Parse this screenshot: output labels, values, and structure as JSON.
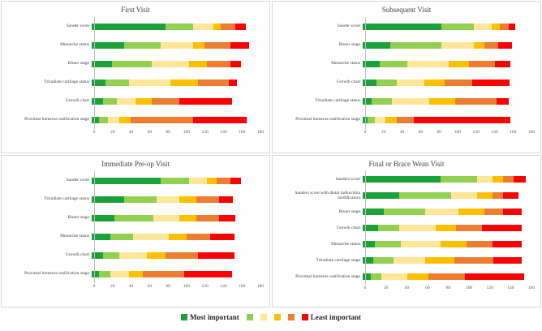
{
  "legend": {
    "most_label": "Most important",
    "least_label": "Least important",
    "colors": [
      "#1ba139",
      "#92d050",
      "#ffe699",
      "#ffc000",
      "#ed7d31",
      "#fe0000"
    ]
  },
  "chart_data": [
    {
      "type": "bar",
      "stacked": true,
      "orientation": "horizontal",
      "title": "First Visit",
      "xlabel": "",
      "ylabel": "",
      "xmax": 180,
      "ticks": [
        0,
        20,
        40,
        60,
        80,
        100,
        120,
        140,
        160,
        180
      ],
      "categories": [
        "Sander score",
        "Menarche status",
        "Risser stage",
        "Triradiate cartilage status",
        "Growth chart",
        "Proximal humerus ossification stage"
      ],
      "values": [
        [
          80,
          30,
          22,
          8,
          15,
          12
        ],
        [
          35,
          40,
          35,
          12,
          28,
          20
        ],
        [
          22,
          43,
          40,
          20,
          25,
          12
        ],
        [
          15,
          25,
          45,
          30,
          33,
          9
        ],
        [
          12,
          15,
          20,
          18,
          30,
          57
        ],
        [
          8,
          10,
          12,
          12,
          68,
          58
        ]
      ]
    },
    {
      "type": "bar",
      "stacked": true,
      "orientation": "horizontal",
      "title": "Subsequent Visit",
      "xlabel": "",
      "ylabel": "",
      "xmax": 180,
      "ticks": [
        0,
        20,
        40,
        60,
        80,
        100,
        120,
        140,
        160,
        180
      ],
      "categories": [
        "Sander score",
        "Risser stage",
        "Menarche status",
        "Growth chart",
        "Triradiate cartilage status",
        "Proximal humerus ossification stage"
      ],
      "values": [
        [
          85,
          35,
          20,
          8,
          10,
          7
        ],
        [
          30,
          55,
          35,
          12,
          15,
          15
        ],
        [
          18,
          30,
          45,
          22,
          28,
          17
        ],
        [
          15,
          22,
          30,
          22,
          30,
          40
        ],
        [
          10,
          22,
          40,
          28,
          45,
          13
        ],
        [
          5,
          8,
          12,
          12,
          18,
          105
        ]
      ]
    },
    {
      "type": "bar",
      "stacked": true,
      "orientation": "horizontal",
      "title": "Immediate Pre-op Visit",
      "xlabel": "",
      "ylabel": "",
      "xmax": 180,
      "ticks": [
        0,
        20,
        40,
        60,
        80,
        100,
        120,
        140,
        160,
        180
      ],
      "categories": [
        "Sander score",
        "Triradiate cartilage status",
        "Risser stage",
        "Menarche status",
        "Growth chart",
        "Proximal humerus ossification stage"
      ],
      "values": [
        [
          75,
          30,
          20,
          10,
          15,
          12
        ],
        [
          35,
          35,
          25,
          18,
          25,
          15
        ],
        [
          25,
          42,
          28,
          18,
          25,
          17
        ],
        [
          20,
          25,
          38,
          20,
          25,
          27
        ],
        [
          12,
          18,
          30,
          20,
          35,
          40
        ],
        [
          8,
          12,
          20,
          15,
          45,
          52
        ]
      ]
    },
    {
      "type": "bar",
      "stacked": true,
      "orientation": "horizontal",
      "title": "Final or Brace Wean Visit",
      "xlabel": "",
      "ylabel": "",
      "xmax": 160,
      "ticks": [
        0,
        20,
        40,
        60,
        80,
        100,
        120,
        140,
        160
      ],
      "categories": [
        "Sanders score",
        "Sanders score with distal radius/ulna modification",
        "Risser stage",
        "Growth chart",
        "Menarche status",
        "Triradiate cartilage stage",
        "Proximal humerus ossification stage"
      ],
      "values": [
        [
          75,
          35,
          15,
          10,
          10,
          12
        ],
        [
          35,
          50,
          25,
          15,
          10,
          15
        ],
        [
          20,
          40,
          32,
          25,
          18,
          18
        ],
        [
          15,
          20,
          35,
          20,
          25,
          38
        ],
        [
          12,
          25,
          38,
          25,
          25,
          28
        ],
        [
          10,
          20,
          30,
          28,
          38,
          27
        ],
        [
          8,
          10,
          25,
          20,
          35,
          57
        ]
      ]
    }
  ]
}
